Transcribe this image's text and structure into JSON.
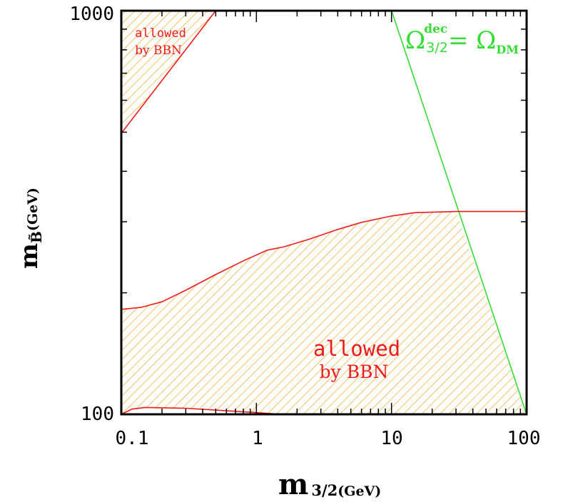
{
  "chart_data": {
    "type": "area",
    "x_scale": "log",
    "y_scale": "log",
    "xlim": [
      0.1,
      100
    ],
    "ylim": [
      100,
      1000
    ],
    "x_ticks": [
      "0.1",
      "1",
      "10",
      "100"
    ],
    "y_ticks": [
      "100",
      "1000"
    ],
    "xlabel": {
      "main": "m",
      "sub": "3/2",
      "unit": "(GeV)"
    },
    "ylabel": {
      "main": "m",
      "sub": "B̃",
      "unit": "(GeV)"
    },
    "regions": [
      {
        "label_line1": "allowed",
        "label_line2": "by BBN",
        "upper_boundary": [
          [
            0.1,
            182
          ],
          [
            0.14,
            184
          ],
          [
            0.2,
            190
          ],
          [
            0.3,
            203
          ],
          [
            0.5,
            222
          ],
          [
            0.8,
            240
          ],
          [
            1.2,
            255
          ],
          [
            1.6,
            260
          ],
          [
            2.5,
            272
          ],
          [
            4,
            287
          ],
          [
            6,
            299
          ],
          [
            10,
            310
          ],
          [
            15,
            316
          ],
          [
            30,
            318
          ]
        ],
        "lower_boundary": [
          [
            0.1,
            100
          ],
          [
            0.12,
            103
          ],
          [
            0.15,
            104
          ],
          [
            0.3,
            103.5
          ],
          [
            0.6,
            102
          ],
          [
            1,
            101
          ],
          [
            1.5,
            100
          ]
        ]
      },
      {
        "label_line1": "allowed",
        "label_line2": "by BBN",
        "boundary": [
          [
            0.1,
            497
          ],
          [
            0.5,
            1000
          ]
        ]
      }
    ],
    "lines": [
      {
        "name": "Ω_{3/2}^{dec} = Ω_DM",
        "color": "#33dd33",
        "points": [
          [
            10,
            1000
          ],
          [
            100,
            100
          ]
        ]
      },
      {
        "name": "BBN boundary (continued)",
        "color": "#ee1b1b",
        "points": [
          [
            30,
            318
          ],
          [
            100,
            318
          ]
        ]
      }
    ],
    "annotations": {
      "green_label": {
        "base": "Ω",
        "sub": "3/2",
        "sup": "dec",
        "eq": "= Ω",
        "eq_sub": "DM"
      }
    },
    "colors": {
      "hatch": "#f5a623",
      "boundary": "#ee1b1b",
      "dm_line": "#33dd33",
      "frame": "#000000"
    }
  }
}
